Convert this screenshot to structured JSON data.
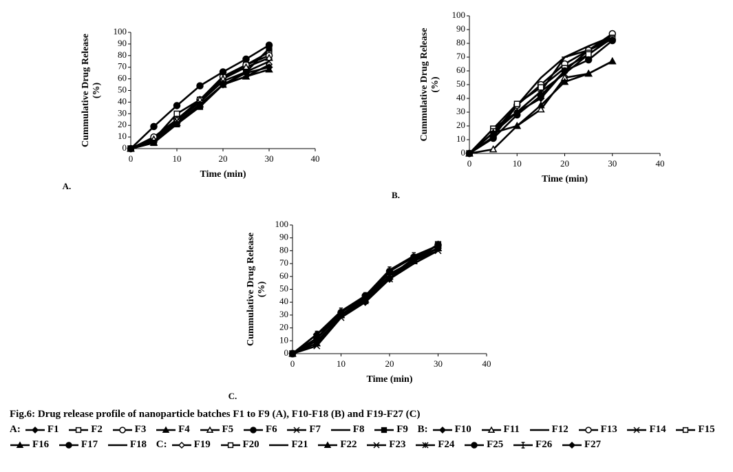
{
  "chart_data": [
    {
      "type": "line",
      "panel_label": "A.",
      "legend_label": "A:",
      "xlabel": "Time (min)",
      "ylabel": [
        "Cummulative Drug Release",
        "(%)"
      ],
      "color": "#000000",
      "x": [
        0,
        5,
        10,
        15,
        20,
        25,
        30
      ],
      "xlim": [
        0,
        40
      ],
      "ylim": [
        0,
        100
      ],
      "xticks": [
        0,
        10,
        20,
        30,
        40
      ],
      "yticks": [
        0,
        10,
        20,
        30,
        40,
        50,
        60,
        70,
        80,
        90,
        100
      ],
      "series": [
        {
          "name": "F1",
          "marker": "diamond",
          "values": [
            0,
            8,
            22,
            38,
            55,
            65,
            70
          ]
        },
        {
          "name": "F2",
          "marker": "square-open",
          "values": [
            0,
            8,
            30,
            42,
            60,
            72,
            83
          ]
        },
        {
          "name": "F3",
          "marker": "circle-open",
          "values": [
            0,
            10,
            25,
            42,
            62,
            72,
            80
          ]
        },
        {
          "name": "F4",
          "marker": "triangle",
          "values": [
            0,
            5,
            22,
            38,
            55,
            62,
            68
          ]
        },
        {
          "name": "F5",
          "marker": "triangle-open",
          "values": [
            0,
            8,
            25,
            42,
            60,
            70,
            78
          ]
        },
        {
          "name": "F6",
          "marker": "circle",
          "values": [
            0,
            19,
            37,
            54,
            66,
            77,
            89
          ]
        },
        {
          "name": "F7",
          "marker": "x",
          "values": [
            0,
            6,
            24,
            40,
            58,
            66,
            75
          ]
        },
        {
          "name": "F8",
          "marker": "dash",
          "values": [
            0,
            5,
            22,
            36,
            55,
            62,
            72
          ]
        },
        {
          "name": "F9",
          "marker": "square",
          "values": [
            0,
            5,
            21,
            36,
            55,
            66,
            86
          ]
        }
      ]
    },
    {
      "type": "line",
      "panel_label": "B.",
      "legend_label": "B:",
      "xlabel": "Time (min)",
      "ylabel": [
        "Cummulative Drug Release",
        "(%)"
      ],
      "color": "#000000",
      "x": [
        0,
        5,
        10,
        15,
        20,
        25,
        30
      ],
      "xlim": [
        0,
        40
      ],
      "ylim": [
        0,
        100
      ],
      "xticks": [
        0,
        10,
        20,
        30,
        40
      ],
      "yticks": [
        0,
        10,
        20,
        30,
        40,
        50,
        60,
        70,
        80,
        90,
        100
      ],
      "series": [
        {
          "name": "F10",
          "marker": "diamond",
          "values": [
            0,
            15,
            30,
            40,
            60,
            75,
            83
          ]
        },
        {
          "name": "F11",
          "marker": "triangle-open",
          "values": [
            0,
            3,
            20,
            32,
            55,
            58,
            67
          ]
        },
        {
          "name": "F12",
          "marker": "none",
          "values": [
            0,
            15,
            35,
            55,
            70,
            78,
            85
          ]
        },
        {
          "name": "F13",
          "marker": "circle-open",
          "values": [
            0,
            12,
            35,
            50,
            65,
            75,
            87
          ]
        },
        {
          "name": "F14",
          "marker": "x",
          "values": [
            0,
            15,
            30,
            45,
            58,
            72,
            84
          ]
        },
        {
          "name": "F15",
          "marker": "square-open",
          "values": [
            0,
            18,
            36,
            48,
            62,
            72,
            84
          ]
        },
        {
          "name": "F16",
          "marker": "triangle",
          "values": [
            0,
            15,
            20,
            35,
            52,
            58,
            67
          ]
        },
        {
          "name": "F17",
          "marker": "circle",
          "values": [
            0,
            11,
            28,
            42,
            60,
            68,
            82
          ]
        },
        {
          "name": "F18",
          "marker": "dash",
          "values": [
            0,
            18,
            30,
            45,
            70,
            75,
            85
          ]
        }
      ]
    },
    {
      "type": "line",
      "panel_label": "C.",
      "legend_label": "C:",
      "xlabel": "Time (min)",
      "ylabel": [
        "Cummulative Drug Release",
        "(%)"
      ],
      "color": "#000000",
      "x": [
        0,
        5,
        10,
        15,
        20,
        25,
        30
      ],
      "xlim": [
        0,
        40
      ],
      "ylim": [
        0,
        100
      ],
      "xticks": [
        0,
        10,
        20,
        30,
        40
      ],
      "yticks": [
        0,
        10,
        20,
        30,
        40,
        50,
        60,
        70,
        80,
        90,
        100
      ],
      "series": [
        {
          "name": "F19",
          "marker": "diamond-open",
          "values": [
            0,
            15,
            32,
            45,
            62,
            72,
            82
          ]
        },
        {
          "name": "F20",
          "marker": "square-open",
          "values": [
            0,
            12,
            30,
            43,
            60,
            73,
            85
          ]
        },
        {
          "name": "F21",
          "marker": "dash",
          "values": [
            0,
            10,
            28,
            40,
            58,
            70,
            80
          ]
        },
        {
          "name": "F22",
          "marker": "triangle",
          "values": [
            0,
            8,
            30,
            42,
            60,
            72,
            82
          ]
        },
        {
          "name": "F23",
          "marker": "x",
          "values": [
            0,
            6,
            28,
            41,
            58,
            72,
            80
          ]
        },
        {
          "name": "F24",
          "marker": "star",
          "values": [
            0,
            12,
            30,
            44,
            60,
            74,
            82
          ]
        },
        {
          "name": "F25",
          "marker": "circle",
          "values": [
            0,
            12,
            32,
            45,
            64,
            75,
            84
          ]
        },
        {
          "name": "F26",
          "marker": "bar",
          "values": [
            0,
            15,
            33,
            45,
            65,
            76,
            84
          ]
        },
        {
          "name": "F27",
          "marker": "diamond",
          "values": [
            0,
            15,
            30,
            40,
            58,
            72,
            85
          ]
        }
      ]
    }
  ],
  "caption": "Fig.6: Drug release profile of nanoparticle batches F1 to F9 (A), F10-F18 (B) and F19-F27 (C)"
}
